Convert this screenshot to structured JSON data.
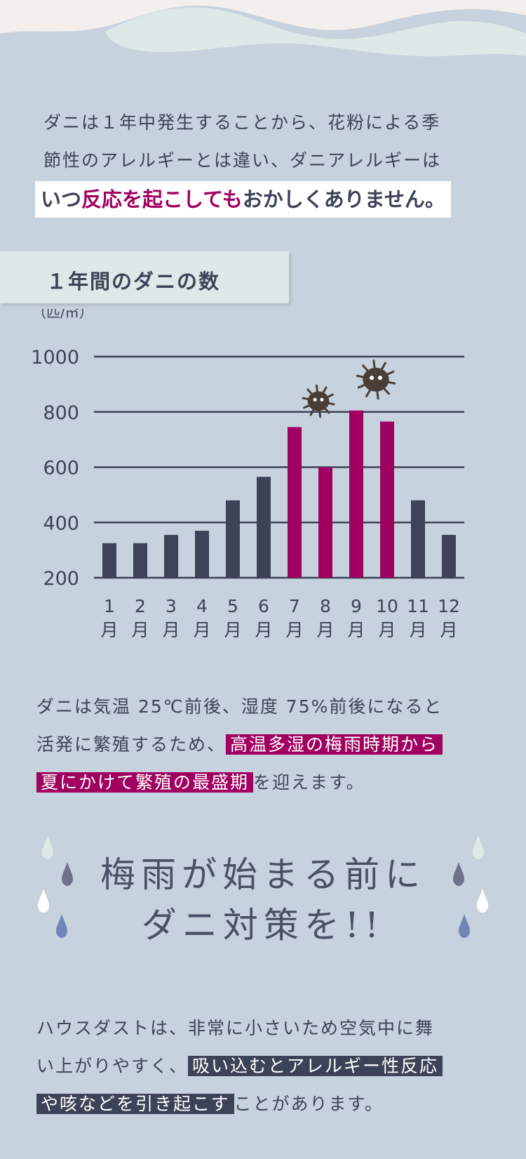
{
  "intro": {
    "line1": "ダニは１年中発生することから、花粉による季",
    "line2": "節性のアレルギーとは違い、ダニアレルギーは",
    "hl_pre": "いつ",
    "hl_accent": "反応を起こしても",
    "hl_post": "おかしくありません。"
  },
  "section": {
    "title": "１年間のダニの数"
  },
  "chart_data": {
    "type": "bar",
    "unit": "（匹/㎡）",
    "categories": [
      "1",
      "2",
      "3",
      "4",
      "5",
      "6",
      "7",
      "8",
      "9",
      "10",
      "11",
      "12"
    ],
    "month_suffix": "月",
    "values": [
      325,
      325,
      355,
      370,
      480,
      565,
      745,
      600,
      805,
      765,
      480,
      355
    ],
    "highlight_months": [
      "7",
      "8",
      "9",
      "10"
    ],
    "yticks": [
      200,
      400,
      600,
      800,
      1000
    ],
    "ylim": [
      200,
      1000
    ],
    "grid": true,
    "colors": {
      "normal": "#3d4356",
      "highlight": "#a0005f",
      "grid": "#3d4356"
    }
  },
  "para2": {
    "line1": "ダニは気温 25℃前後、湿度 75%前後になると",
    "line2_pre": "活発に繁殖するため、",
    "line2_hl": "高温多湿の梅雨時期から",
    "line3_hl": "夏にかけて繁殖の最盛期",
    "line3_post": "を迎えます。"
  },
  "slogan": {
    "line1": "梅雨が始まる前に",
    "line2": "ダニ対策を!!"
  },
  "para3": {
    "line1": "ハウスダストは、非常に小さいため空気中に舞",
    "line2_pre": "い上がりやすく、",
    "line2_hl": "吸い込むとアレルギー性反応",
    "line3_hl": "や咳などを引き起こす",
    "line3_post": "ことがあります。"
  },
  "icons": {
    "mite": "mite-icon",
    "raindrop": "raindrop-icon"
  },
  "colors": {
    "background": "#c6d2dd",
    "accent": "#a0005f",
    "text": "#3d4356",
    "tab": "#dde9e8"
  }
}
